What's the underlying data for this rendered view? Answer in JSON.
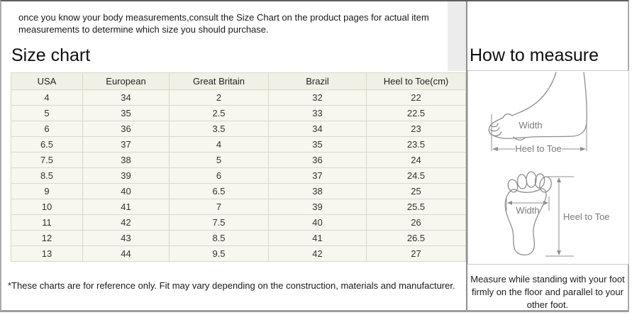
{
  "intro": "once you know your body measurements,consult the Size Chart on the product pages for actual item measurements to determine which size you should purchase.",
  "size_chart": {
    "title": "Size chart",
    "footnote": "*These charts are for reference only. Fit may vary depending on the construction, materials and manufacturer.",
    "table": {
      "headers": [
        "USA",
        "European",
        "Great Britain",
        "Brazil",
        "Heel to Toe(cm)"
      ],
      "rows": [
        [
          "4",
          "34",
          "2",
          "32",
          "22"
        ],
        [
          "5",
          "35",
          "2.5",
          "33",
          "22.5"
        ],
        [
          "6",
          "36",
          "3.5",
          "34",
          "23"
        ],
        [
          "6.5",
          "37",
          "4",
          "35",
          "23.5"
        ],
        [
          "7.5",
          "38",
          "5",
          "36",
          "24"
        ],
        [
          "8.5",
          "39",
          "6",
          "37",
          "24.5"
        ],
        [
          "9",
          "40",
          "6.5",
          "38",
          "25"
        ],
        [
          "10",
          "41",
          "7",
          "39",
          "25.5"
        ],
        [
          "11",
          "42",
          "7.5",
          "40",
          "26"
        ],
        [
          "12",
          "43",
          "8.5",
          "41",
          "26.5"
        ],
        [
          "13",
          "44",
          "9.5",
          "42",
          "27"
        ]
      ]
    }
  },
  "how_to_measure": {
    "title": "How to measure",
    "note": "Measure while standing with your foot firmly on the floor and parallel to your other foot.",
    "side_view": {
      "width_label": "Width",
      "length_label": "Heel to Toe"
    },
    "top_view": {
      "width_label": "Width",
      "length_label": "Heel to Toe"
    }
  },
  "colors": {
    "table_border": "#dbd9c4",
    "table_header_bg": "#f1f0e6",
    "table_row_bg": "#f7f6ef",
    "frame_border": "#ababab",
    "divider": "#8f8f8f",
    "diagram_stroke": "#8e8e8e",
    "diagram_label": "#7a7a7a"
  }
}
